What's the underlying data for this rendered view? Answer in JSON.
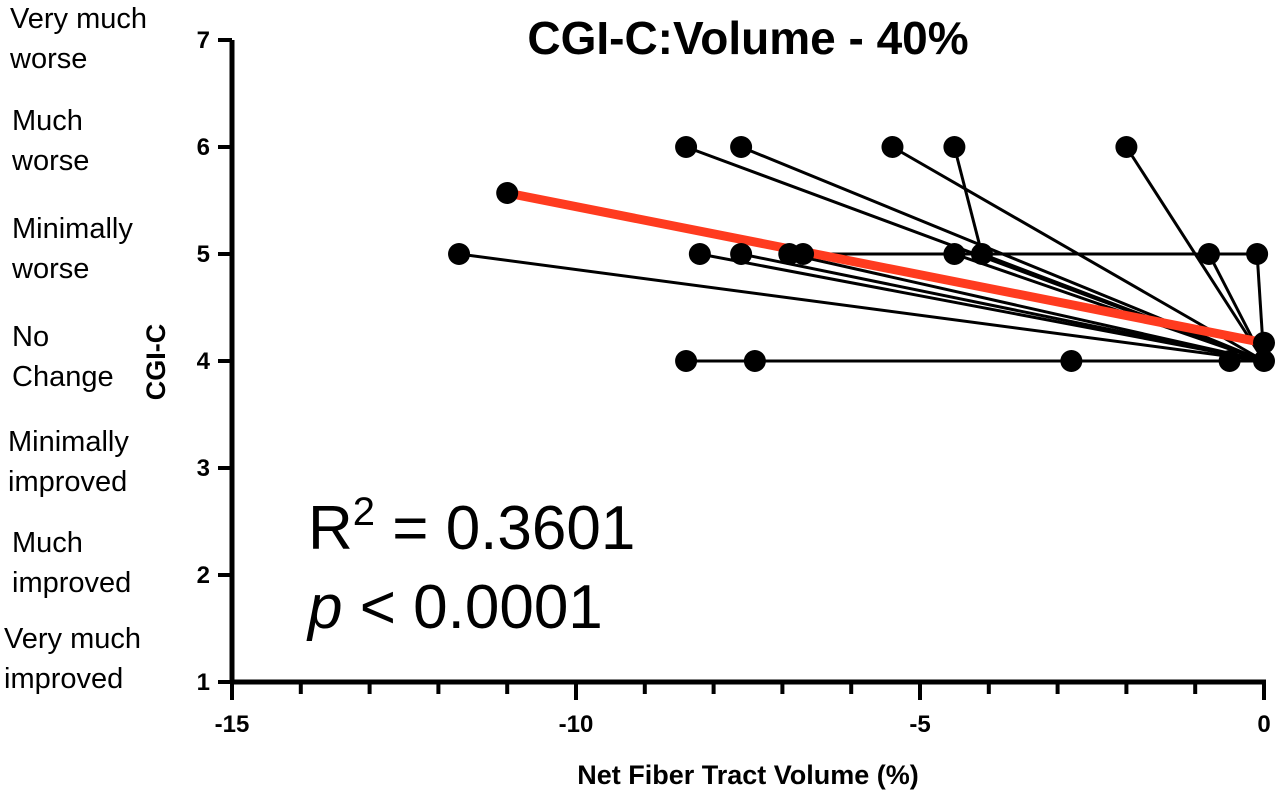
{
  "chart_data": {
    "type": "scatter",
    "title": "CGI-C:Volume - 40%",
    "xlabel": "Net Fiber Tract Volume (%)",
    "ylabel": "CGI-C",
    "xlim": [
      -15,
      0
    ],
    "ylim": [
      1,
      7
    ],
    "x_ticks": [
      -15,
      -10,
      -5,
      0
    ],
    "y_ticks": [
      1,
      2,
      3,
      4,
      5,
      6,
      7
    ],
    "x_tick_labels": [
      "-15",
      "-10",
      "-5",
      "0"
    ],
    "y_tick_labels": [
      "1",
      "2",
      "3",
      "4",
      "5",
      "6",
      "7"
    ],
    "y_category_labels": [
      {
        "value": 7,
        "line1": "Very much",
        "line2": "worse"
      },
      {
        "value": 6,
        "line1": "Much",
        "line2": "worse"
      },
      {
        "value": 5,
        "line1": "Minimally",
        "line2": "worse"
      },
      {
        "value": 4,
        "line1": "No",
        "line2": "Change"
      },
      {
        "value": 3,
        "line1": "Minimally",
        "line2": "improved"
      },
      {
        "value": 2,
        "line1": "Much",
        "line2": "improved"
      },
      {
        "value": 1,
        "line1": "Very much",
        "line2": "improved"
      }
    ],
    "connector_origin": {
      "x": 0,
      "y": 4
    },
    "points": [
      {
        "x": -8.4,
        "y": 6
      },
      {
        "x": -7.6,
        "y": 6
      },
      {
        "x": -5.4,
        "y": 6
      },
      {
        "x": -4.5,
        "y": 6
      },
      {
        "x": -2.0,
        "y": 6
      },
      {
        "x": -11.7,
        "y": 5
      },
      {
        "x": -8.2,
        "y": 5
      },
      {
        "x": -7.6,
        "y": 5
      },
      {
        "x": -6.9,
        "y": 5
      },
      {
        "x": -6.7,
        "y": 5
      },
      {
        "x": -4.5,
        "y": 5
      },
      {
        "x": -4.1,
        "y": 5
      },
      {
        "x": -0.8,
        "y": 5
      },
      {
        "x": -0.1,
        "y": 5
      },
      {
        "x": -8.4,
        "y": 4
      },
      {
        "x": -7.4,
        "y": 4
      },
      {
        "x": -2.8,
        "y": 4
      },
      {
        "x": -0.5,
        "y": 4
      },
      {
        "x": 0.0,
        "y": 4
      }
    ],
    "connectors": [
      {
        "from": [
          -8.4,
          6
        ],
        "to": [
          0,
          4
        ]
      },
      {
        "from": [
          -7.6,
          6
        ],
        "to": [
          0,
          4
        ]
      },
      {
        "from": [
          -5.4,
          6
        ],
        "to": [
          0,
          4
        ]
      },
      {
        "from": [
          -4.5,
          6
        ],
        "to": [
          -4.1,
          5
        ]
      },
      {
        "from": [
          -2.0,
          6
        ],
        "to": [
          0,
          4
        ]
      },
      {
        "from": [
          -11.7,
          5
        ],
        "to": [
          0,
          4
        ]
      },
      {
        "from": [
          -8.2,
          5
        ],
        "to": [
          0,
          4
        ]
      },
      {
        "from": [
          -7.6,
          5
        ],
        "to": [
          0,
          4
        ]
      },
      {
        "from": [
          -6.9,
          5
        ],
        "to": [
          0,
          4
        ]
      },
      {
        "from": [
          -6.7,
          5
        ],
        "to": [
          -0.1,
          5
        ]
      },
      {
        "from": [
          -4.5,
          5
        ],
        "to": [
          0,
          4
        ]
      },
      {
        "from": [
          -4.1,
          5
        ],
        "to": [
          0,
          4
        ]
      },
      {
        "from": [
          -0.8,
          5
        ],
        "to": [
          0,
          4
        ]
      },
      {
        "from": [
          -0.1,
          5
        ],
        "to": [
          0,
          4
        ]
      },
      {
        "from": [
          -8.4,
          4
        ],
        "to": [
          0,
          4
        ]
      }
    ],
    "regression": {
      "x": [
        -11.0,
        0.0
      ],
      "y": [
        5.57,
        4.17
      ],
      "color": "#ff3b1f",
      "endpoint_markers": [
        {
          "x": -11.0,
          "y": 5.57
        },
        {
          "x": 0.0,
          "y": 4.17
        }
      ]
    },
    "annotation": {
      "r_prefix": "R",
      "r_superscript": "2",
      "r_value": " = 0.3601",
      "p_symbol": "p",
      "p_value": " < 0.0001"
    },
    "grid": false,
    "point_color": "#000000",
    "line_color": "#000000"
  }
}
